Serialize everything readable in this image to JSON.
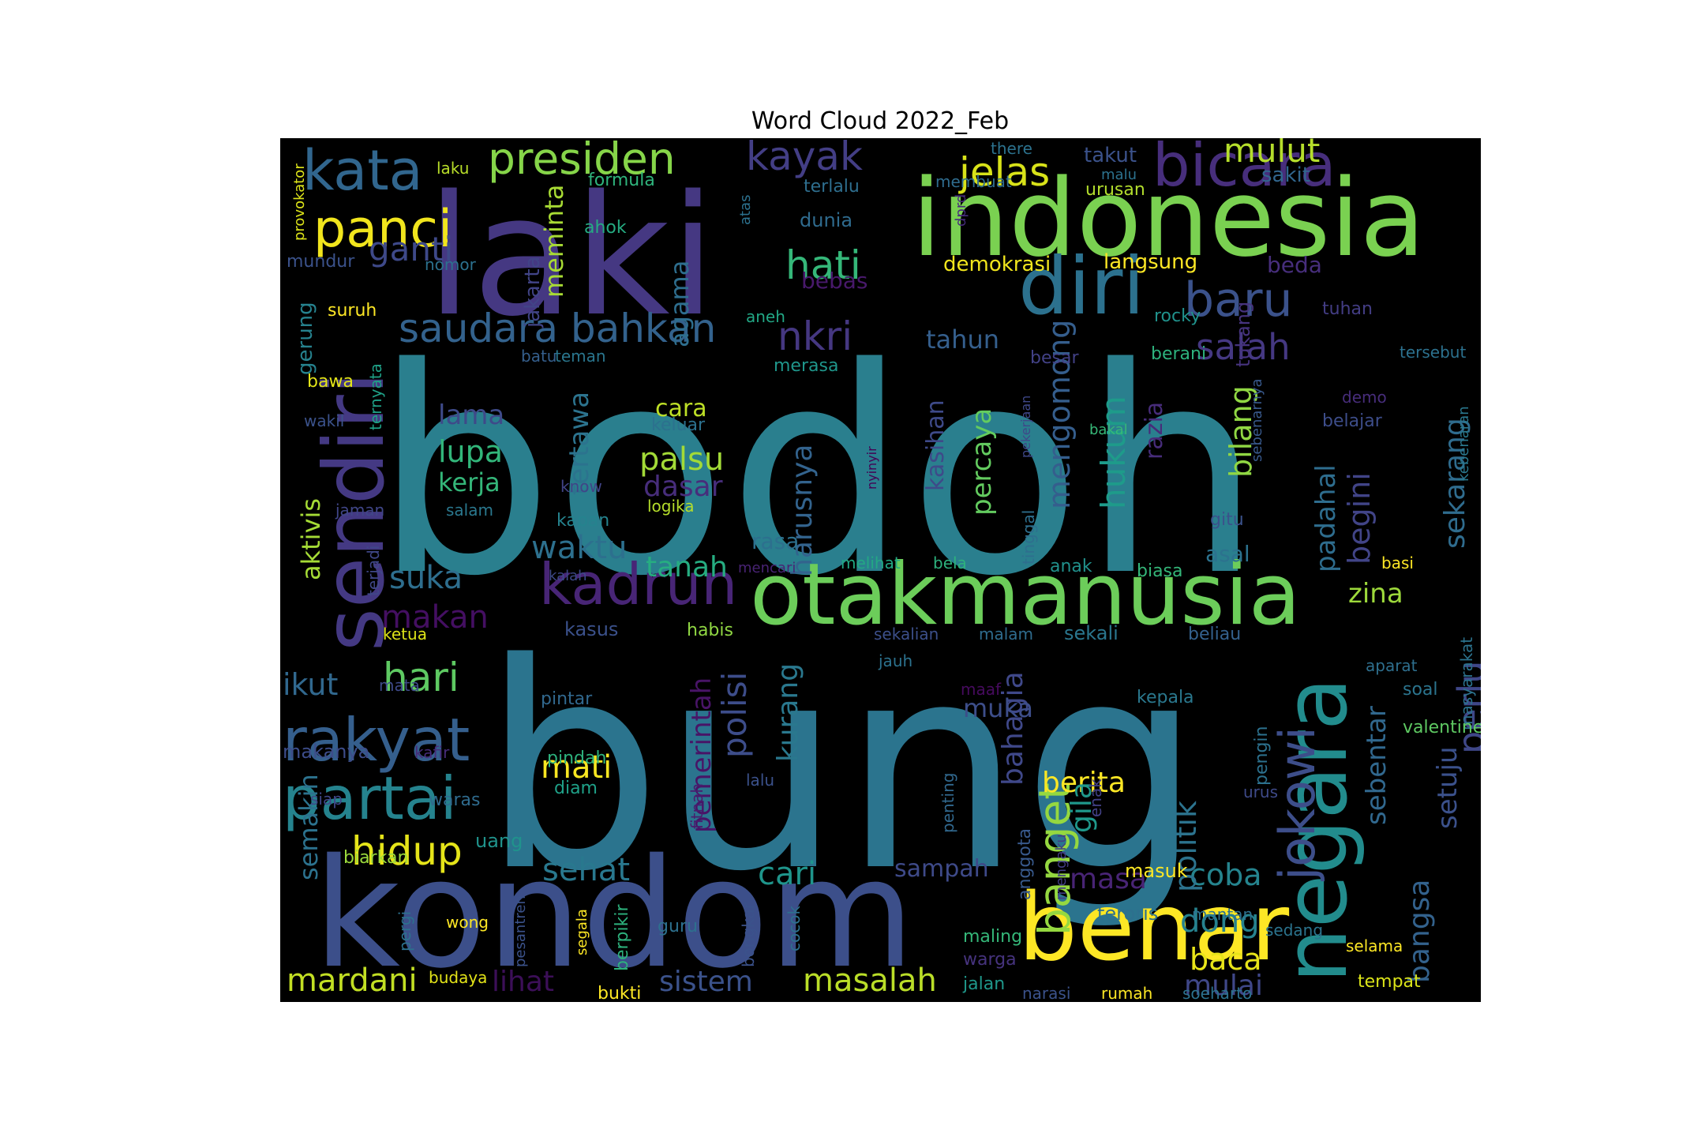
{
  "chart_data": {
    "type": "wordcloud",
    "title": "Word Cloud 2022_Feb",
    "background": "#000000",
    "colormap": "viridis",
    "words": [
      {
        "text": "bodoh",
        "color": "#2a7f8e"
      },
      {
        "text": "bung",
        "color": "#2b748e"
      },
      {
        "text": "laki",
        "color": "#453882"
      },
      {
        "text": "kondom",
        "color": "#3c4f8a"
      },
      {
        "text": "indonesia",
        "color": "#7ad151"
      },
      {
        "text": "otakmanusia",
        "color": "#6ccd5a"
      },
      {
        "text": "benar",
        "color": "#fde725"
      },
      {
        "text": "negara",
        "color": "#228c8d"
      },
      {
        "text": "sendiri",
        "color": "#443983"
      },
      {
        "text": "diri",
        "color": "#2c718e"
      },
      {
        "text": "bicara",
        "color": "#472e7c"
      },
      {
        "text": "kata",
        "color": "#31668e"
      },
      {
        "text": "rakyat",
        "color": "#355f8d"
      },
      {
        "text": "partai",
        "color": "#25838e"
      },
      {
        "text": "kadrun",
        "color": "#482576"
      },
      {
        "text": "panci",
        "color": "#f1e51d"
      },
      {
        "text": "presiden",
        "color": "#86d549"
      },
      {
        "text": "baru",
        "color": "#3b528b"
      },
      {
        "text": "jokowi",
        "color": "#3d4e8a"
      },
      {
        "text": "banget",
        "color": "#95d840"
      },
      {
        "text": "saudara bahkan",
        "color": "#33628d"
      },
      {
        "text": "hari",
        "color": "#5ec962"
      },
      {
        "text": "hati",
        "color": "#35b779"
      },
      {
        "text": "kayak",
        "color": "#433e85"
      },
      {
        "text": "jelas",
        "color": "#d8e219"
      },
      {
        "text": "mulut",
        "color": "#b5de2b"
      },
      {
        "text": "nkri",
        "color": "#453781"
      },
      {
        "text": "salah",
        "color": "#453882"
      },
      {
        "text": "mardani",
        "color": "#c2df23"
      },
      {
        "text": "hidup",
        "color": "#e5e419"
      },
      {
        "text": "ganti",
        "color": "#3e4989"
      },
      {
        "text": "suka",
        "color": "#2e6e8e"
      },
      {
        "text": "waktu",
        "color": "#2d708e"
      },
      {
        "text": "makan",
        "color": "#440f62"
      },
      {
        "text": "ikut",
        "color": "#31688e"
      },
      {
        "text": "masalah",
        "color": "#bade28"
      },
      {
        "text": "sistem",
        "color": "#3b528b"
      },
      {
        "text": "lihat",
        "color": "#3c0f58"
      },
      {
        "text": "sehat",
        "color": "#29788e"
      },
      {
        "text": "cari",
        "color": "#1f958b"
      },
      {
        "text": "mati",
        "color": "#f8e621"
      },
      {
        "text": "berita",
        "color": "#fde725"
      },
      {
        "text": "masa",
        "color": "#482475"
      },
      {
        "text": "dong",
        "color": "#26828e"
      },
      {
        "text": "coba",
        "color": "#25848e"
      },
      {
        "text": "baca",
        "color": "#e7e419"
      },
      {
        "text": "mulai",
        "color": "#3f4788"
      },
      {
        "text": "lupa",
        "color": "#32b67a"
      },
      {
        "text": "palsu",
        "color": "#a2da37"
      },
      {
        "text": "lama",
        "color": "#3e4a89"
      },
      {
        "text": "kerja",
        "color": "#34b679"
      },
      {
        "text": "tanah",
        "color": "#26ad81"
      },
      {
        "text": "dasar",
        "color": "#472d7b"
      },
      {
        "text": "cara",
        "color": "#bddf26"
      },
      {
        "text": "hukum",
        "color": "#1e9b8a"
      },
      {
        "text": "mengomong",
        "color": "#355e8d"
      },
      {
        "text": "percaya",
        "color": "#63cb5f"
      },
      {
        "text": "tertawa",
        "color": "#2c738e"
      },
      {
        "text": "harusnya",
        "color": "#33638d"
      },
      {
        "text": "kasihan",
        "color": "#3e4a89"
      },
      {
        "text": "razia",
        "color": "#472c7a"
      },
      {
        "text": "bilang",
        "color": "#90d743"
      },
      {
        "text": "begini",
        "color": "#414487"
      },
      {
        "text": "sekarang",
        "color": "#2f6c8e"
      },
      {
        "text": "padahal",
        "color": "#2e6d8e"
      },
      {
        "text": "perlu",
        "color": "#3f4788"
      },
      {
        "text": "bangsa",
        "color": "#33628d"
      },
      {
        "text": "setuju",
        "color": "#3b518b"
      },
      {
        "text": "zina",
        "color": "#9dd93b"
      },
      {
        "text": "politik",
        "color": "#2c738e"
      },
      {
        "text": "polisi",
        "color": "#3d4d8a"
      },
      {
        "text": "kurang",
        "color": "#2a788e"
      },
      {
        "text": "bahagia",
        "color": "#3f4889"
      },
      {
        "text": "pemerintah",
        "color": "#481467"
      },
      {
        "text": "sebentar",
        "color": "#31688e"
      },
      {
        "text": "gila",
        "color": "#1f988b"
      },
      {
        "text": "muka",
        "color": "#3d4e8a"
      },
      {
        "text": "sampah",
        "color": "#3e4a89"
      },
      {
        "text": "semakin",
        "color": "#2c728e"
      },
      {
        "text": "aktivis",
        "color": "#a5db36"
      },
      {
        "text": "agama",
        "color": "#2e6e8e"
      },
      {
        "text": "meminta",
        "color": "#a8db34"
      },
      {
        "text": "jakarta",
        "color": "#414487"
      },
      {
        "text": "demokrasi",
        "color": "#f1e51d"
      },
      {
        "text": "tahun",
        "color": "#355f8d"
      },
      {
        "text": "beda",
        "color": "#472e7c"
      },
      {
        "text": "langsung",
        "color": "#fde725"
      },
      {
        "text": "dunia",
        "color": "#2f6b8e"
      },
      {
        "text": "bebas",
        "color": "#48196b"
      },
      {
        "text": "sakit",
        "color": "#31668e"
      },
      {
        "text": "takut",
        "color": "#3b528b"
      },
      {
        "text": "terlalu",
        "color": "#2e6e8e"
      },
      {
        "text": "formula",
        "color": "#2fb47c"
      },
      {
        "text": "ahok",
        "color": "#25ac82"
      },
      {
        "text": "laku",
        "color": "#b8de29"
      },
      {
        "text": "mundur",
        "color": "#3b528b"
      },
      {
        "text": "nomor",
        "color": "#2c718e"
      },
      {
        "text": "suruh",
        "color": "#fde725"
      },
      {
        "text": "gerung",
        "color": "#26828e"
      },
      {
        "text": "bawa",
        "color": "#e2e418"
      },
      {
        "text": "ternyata",
        "color": "#1fa187"
      },
      {
        "text": "wakil",
        "color": "#3b528b"
      },
      {
        "text": "provokator",
        "color": "#dce319"
      },
      {
        "text": "jaman",
        "color": "#404688"
      },
      {
        "text": "salam",
        "color": "#2a788e"
      },
      {
        "text": "know",
        "color": "#414487"
      },
      {
        "text": "kapan",
        "color": "#25838e"
      },
      {
        "text": "logika",
        "color": "#b5de2b"
      },
      {
        "text": "keluar",
        "color": "#2c718e"
      },
      {
        "text": "merasa",
        "color": "#1f968b"
      },
      {
        "text": "batu",
        "color": "#355f8d"
      },
      {
        "text": "teman",
        "color": "#2a768e"
      },
      {
        "text": "aneh",
        "color": "#22a785"
      },
      {
        "text": "rocky",
        "color": "#20928c"
      },
      {
        "text": "besar",
        "color": "#424186"
      },
      {
        "text": "berani",
        "color": "#2db27d"
      },
      {
        "text": "tukang",
        "color": "#46337e"
      },
      {
        "text": "tersebut",
        "color": "#2c718e"
      },
      {
        "text": "tuhan",
        "color": "#433d84"
      },
      {
        "text": "demo",
        "color": "#472d7b"
      },
      {
        "text": "belajar",
        "color": "#3d4d8a"
      },
      {
        "text": "kebenaran",
        "color": "#2a788e"
      },
      {
        "text": "sebenarnya",
        "color": "#38598c"
      },
      {
        "text": "pekerjaan",
        "color": "#3f4889"
      },
      {
        "text": "bakal",
        "color": "#37b878"
      },
      {
        "text": "tinggal",
        "color": "#2e6f8e"
      },
      {
        "text": "nyinyir",
        "color": "#440154"
      },
      {
        "text": "gitu",
        "color": "#3b528b"
      },
      {
        "text": "asal",
        "color": "#2c728e"
      },
      {
        "text": "basi",
        "color": "#fde725"
      },
      {
        "text": "biasa",
        "color": "#34b679"
      },
      {
        "text": "anak",
        "color": "#21918c"
      },
      {
        "text": "bela",
        "color": "#2db27d"
      },
      {
        "text": "melihat",
        "color": "#22a884"
      },
      {
        "text": "mencari",
        "color": "#482374"
      },
      {
        "text": "kalah",
        "color": "#3e4989"
      },
      {
        "text": "rasa",
        "color": "#2d708e"
      },
      {
        "text": "terjadi",
        "color": "#3f4788"
      },
      {
        "text": "ketua",
        "color": "#dde318"
      },
      {
        "text": "mata",
        "color": "#3e4a89"
      },
      {
        "text": "kasus",
        "color": "#3b518b"
      },
      {
        "text": "habis",
        "color": "#90d743"
      },
      {
        "text": "sekalian",
        "color": "#3c4f8a"
      },
      {
        "text": "malam",
        "color": "#2f6c8e"
      },
      {
        "text": "sekali",
        "color": "#2a768e"
      },
      {
        "text": "beliau",
        "color": "#34618d"
      },
      {
        "text": "masyarakat",
        "color": "#2c738e"
      },
      {
        "text": "jauh",
        "color": "#2c728e"
      },
      {
        "text": "aparat",
        "color": "#2e6f8e"
      },
      {
        "text": "soal",
        "color": "#2b748e"
      },
      {
        "text": "maaf",
        "color": "#460b5e"
      },
      {
        "text": "kepala",
        "color": "#2a788e"
      },
      {
        "text": "pengin",
        "color": "#2c718e"
      },
      {
        "text": "valentine",
        "color": "#5ec962"
      },
      {
        "text": "pintar",
        "color": "#31688e"
      },
      {
        "text": "pindah",
        "color": "#2db27d"
      },
      {
        "text": "makanya",
        "color": "#3d4d8a"
      },
      {
        "text": "kafir",
        "color": "#472c7a"
      },
      {
        "text": "diam",
        "color": "#1fa188"
      },
      {
        "text": "lalu",
        "color": "#3b518b"
      },
      {
        "text": "penting",
        "color": "#31688e"
      },
      {
        "text": "enak",
        "color": "#424186"
      },
      {
        "text": "urus",
        "color": "#3e4a89"
      },
      {
        "text": "siap",
        "color": "#3f4788"
      },
      {
        "text": "waras",
        "color": "#2f6b8e"
      },
      {
        "text": "fitnah",
        "color": "#481c6e"
      },
      {
        "text": "uang",
        "color": "#20938c"
      },
      {
        "text": "biarkan",
        "color": "#9bd93c"
      },
      {
        "text": "anggota",
        "color": "#38598c"
      },
      {
        "text": "mengaku",
        "color": "#433d84"
      },
      {
        "text": "masuk",
        "color": "#fde725"
      },
      {
        "text": "teroris",
        "color": "#2d708e"
      },
      {
        "text": "mantan",
        "color": "#2d708e"
      },
      {
        "text": "sedang",
        "color": "#2b748e"
      },
      {
        "text": "selama",
        "color": "#fde725"
      },
      {
        "text": "tempat",
        "color": "#dae319"
      },
      {
        "text": "soeharto",
        "color": "#2c728e"
      },
      {
        "text": "rumah",
        "color": "#fde725"
      },
      {
        "text": "narasi",
        "color": "#3b528b"
      },
      {
        "text": "jalan",
        "color": "#1f988b"
      },
      {
        "text": "warga",
        "color": "#46337e"
      },
      {
        "text": "maling",
        "color": "#35b779"
      },
      {
        "text": "cocok",
        "color": "#2d708e"
      },
      {
        "text": "bongkar",
        "color": "#3b528b"
      },
      {
        "text": "guru",
        "color": "#2d708e"
      },
      {
        "text": "bukti",
        "color": "#fde725"
      },
      {
        "text": "berpikir",
        "color": "#2db27d"
      },
      {
        "text": "segala",
        "color": "#fde725"
      },
      {
        "text": "pesantren",
        "color": "#3b528b"
      },
      {
        "text": "budaya",
        "color": "#e3e418"
      },
      {
        "text": "wong",
        "color": "#fde725"
      },
      {
        "text": "pergi",
        "color": "#2c718e"
      },
      {
        "text": "atas",
        "color": "#2c718e"
      },
      {
        "text": "dprd",
        "color": "#472d7b"
      },
      {
        "text": "membuat",
        "color": "#2f6c8e"
      },
      {
        "text": "malu",
        "color": "#2c728e"
      },
      {
        "text": "urusan",
        "color": "#b2dd2d"
      },
      {
        "text": "there",
        "color": "#2c728e"
      }
    ]
  }
}
